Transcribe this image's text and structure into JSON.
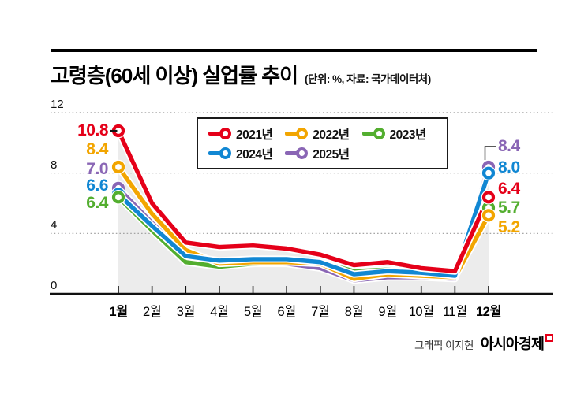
{
  "page": {
    "title": "고령층(60세 이상) 실업률 추이",
    "subtitle": "(단위: %, 자료: 국가데이터처)"
  },
  "credit": {
    "label": "그래픽 이지현",
    "brand": "아시아경제"
  },
  "chart_data": {
    "type": "line",
    "title": "고령층(60세 이상) 실업률 추이",
    "unit_source_note": "(단위: %, 자료: 국가데이터처)",
    "ylabel": "%",
    "ylim": [
      0,
      12
    ],
    "y_ticks": [
      12,
      8,
      4,
      0
    ],
    "grid": "dotted horizontal gridlines at 4, 8, 12; solid baseline at 0",
    "legend_position": "top-center boxed, two rows",
    "band_color": "#ececec",
    "shaded_band": "light gray area under the upper envelope of all series from 1월 to 12월",
    "categories": [
      "1월",
      "2월",
      "3월",
      "4월",
      "5월",
      "6월",
      "7월",
      "8월",
      "9월",
      "10월",
      "11월",
      "12월"
    ],
    "series": [
      {
        "name": "2021년",
        "color": "#e50019",
        "values": [
          10.8,
          6.0,
          3.4,
          3.1,
          3.2,
          3.0,
          2.6,
          1.9,
          2.1,
          1.7,
          1.5,
          6.4
        ],
        "jan_label": "10.8",
        "dec_label": "6.4"
      },
      {
        "name": "2022년",
        "color": "#f2a500",
        "values": [
          8.4,
          5.3,
          2.9,
          2.0,
          2.1,
          2.1,
          2.0,
          1.0,
          1.3,
          1.2,
          1.1,
          5.2
        ],
        "jan_label": "8.4",
        "dec_label": "5.2"
      },
      {
        "name": "2023년",
        "color": "#53ae2f",
        "values": [
          6.4,
          4.2,
          2.1,
          1.8,
          2.0,
          2.1,
          2.1,
          1.5,
          1.6,
          1.4,
          1.2,
          5.7
        ],
        "jan_label": "6.4",
        "dec_label": "5.7"
      },
      {
        "name": "2024년",
        "color": "#1187d3",
        "values": [
          6.6,
          4.5,
          2.5,
          2.2,
          2.3,
          2.3,
          2.1,
          1.3,
          1.5,
          1.4,
          1.2,
          8.0
        ],
        "jan_label": "6.6",
        "dec_label": "8.0"
      },
      {
        "name": "2025년",
        "color": "#8a66b5",
        "values": [
          7.0,
          4.7,
          2.6,
          1.9,
          2.0,
          2.0,
          1.7,
          0.9,
          1.1,
          1.1,
          1.0,
          8.4
        ],
        "jan_label": "7.0",
        "dec_label": "8.4"
      }
    ]
  }
}
